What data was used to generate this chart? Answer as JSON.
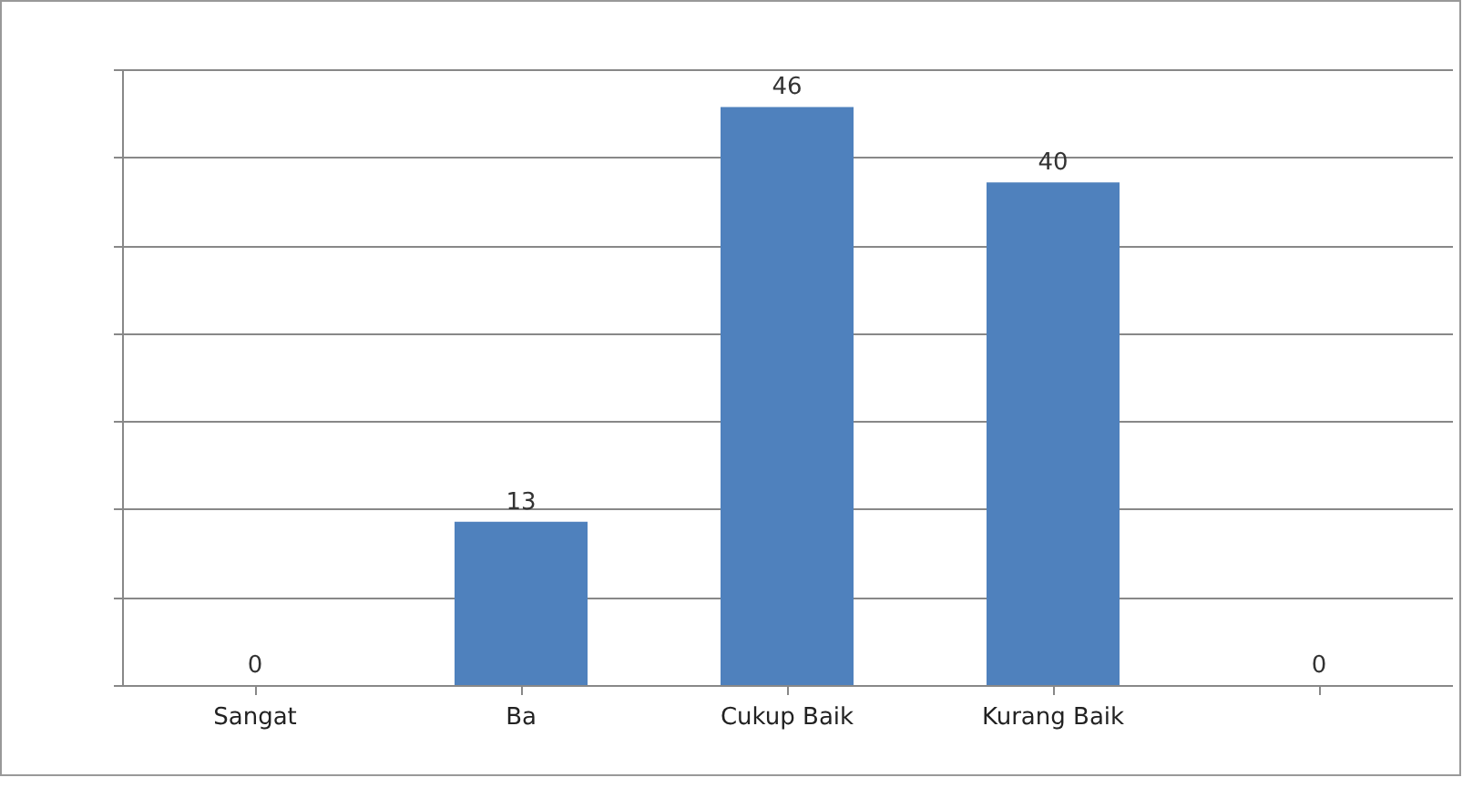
{
  "chart_data": {
    "type": "bar",
    "categories": [
      "Sangat",
      "Ba",
      "Cukup Baik",
      "Kurang Baik",
      null,
      null
    ],
    "values": [
      0,
      13,
      46,
      40,
      0,
      null
    ],
    "color": "#4f81bd",
    "data_labels": true,
    "grid": "y",
    "tick_labels": "x",
    "ylim": [
      0,
      49
    ],
    "yticks": [
      {
        "value": 0,
        "label": null
      },
      {
        "value": 7,
        "label": null
      },
      {
        "value": 14,
        "label": null
      },
      {
        "value": 21,
        "label": null
      },
      {
        "value": 28,
        "label": null
      },
      {
        "value": 35,
        "label": null
      },
      {
        "value": 42,
        "label": null
      },
      {
        "value": 49,
        "label": null
      }
    ]
  }
}
